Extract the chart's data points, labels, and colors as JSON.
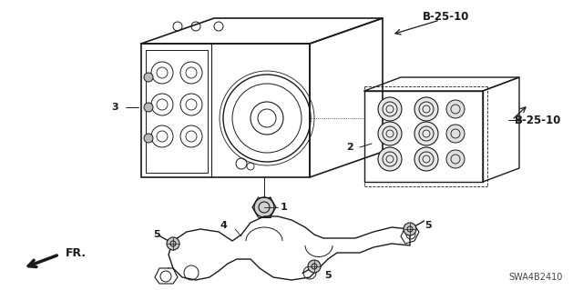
{
  "bg_color": "#ffffff",
  "line_color": "#1a1a1a",
  "part_number": "SWA4B2410",
  "callout_b2510_top": "B-25-10",
  "callout_b2510_right": "B-25-10",
  "figsize": [
    6.4,
    3.19
  ],
  "dpi": 100
}
